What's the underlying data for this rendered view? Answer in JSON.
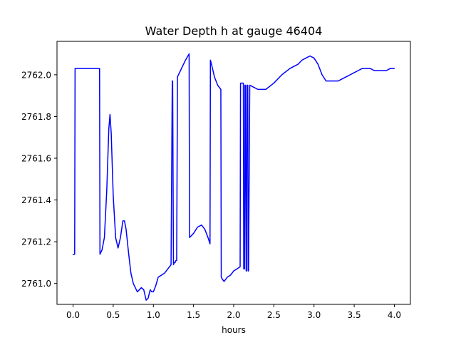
{
  "chart_data": {
    "type": "line",
    "title": "Water Depth h at gauge 46404",
    "xlabel": "hours",
    "ylabel": "",
    "xlim": [
      -0.2,
      4.2
    ],
    "ylim": [
      2760.9,
      2762.16
    ],
    "xticks": [
      0.0,
      0.5,
      1.0,
      1.5,
      2.0,
      2.5,
      3.0,
      3.5,
      4.0
    ],
    "xtick_labels": [
      "0.0",
      "0.5",
      "1.0",
      "1.5",
      "2.0",
      "2.5",
      "3.0",
      "3.5",
      "4.0"
    ],
    "yticks": [
      2761.0,
      2761.2,
      2761.4,
      2761.6,
      2761.8,
      2762.0
    ],
    "ytick_labels": [
      "2761.0",
      "2761.2",
      "2761.4",
      "2761.6",
      "2761.8",
      "2762.0"
    ],
    "grid": false,
    "series": [
      {
        "color": "#0000ff",
        "x": [
          0.0,
          0.02,
          0.025,
          0.1,
          0.2,
          0.33,
          0.335,
          0.36,
          0.39,
          0.42,
          0.445,
          0.46,
          0.475,
          0.5,
          0.53,
          0.56,
          0.59,
          0.62,
          0.64,
          0.66,
          0.69,
          0.72,
          0.75,
          0.8,
          0.85,
          0.88,
          0.91,
          0.935,
          0.96,
          0.98,
          1.0,
          1.03,
          1.06,
          1.1,
          1.14,
          1.18,
          1.22,
          1.235,
          1.24,
          1.25,
          1.26,
          1.27,
          1.28,
          1.29,
          1.3,
          1.35,
          1.4,
          1.445,
          1.45,
          1.5,
          1.55,
          1.6,
          1.64,
          1.68,
          1.705,
          1.71,
          1.73,
          1.76,
          1.8,
          1.84,
          1.845,
          1.86,
          1.88,
          1.92,
          1.96,
          2.0,
          2.04,
          2.08,
          2.085,
          2.1,
          2.12,
          2.125,
          2.135,
          2.14,
          2.145,
          2.155,
          2.16,
          2.165,
          2.175,
          2.18,
          2.185,
          2.2,
          2.25,
          2.3,
          2.35,
          2.4,
          2.5,
          2.6,
          2.7,
          2.8,
          2.85,
          2.9,
          2.95,
          3.0,
          3.05,
          3.1,
          3.15,
          3.2,
          3.25,
          3.3,
          3.35,
          3.4,
          3.45,
          3.5,
          3.55,
          3.6,
          3.65,
          3.7,
          3.75,
          3.8,
          3.85,
          3.9,
          3.95,
          4.0
        ],
        "y": [
          2761.14,
          2761.14,
          2762.03,
          2762.03,
          2762.03,
          2762.03,
          2761.14,
          2761.16,
          2761.22,
          2761.45,
          2761.74,
          2761.81,
          2761.72,
          2761.42,
          2761.22,
          2761.17,
          2761.22,
          2761.3,
          2761.3,
          2761.26,
          2761.15,
          2761.05,
          2761.0,
          2760.96,
          2760.98,
          2760.97,
          2760.92,
          2760.93,
          2760.97,
          2760.96,
          2760.96,
          2760.99,
          2761.03,
          2761.04,
          2761.05,
          2761.07,
          2761.09,
          2761.97,
          2761.97,
          2761.09,
          2761.1,
          2761.1,
          2761.11,
          2761.11,
          2761.99,
          2762.03,
          2762.07,
          2762.1,
          2761.22,
          2761.24,
          2761.27,
          2761.28,
          2761.26,
          2761.22,
          2761.19,
          2762.07,
          2762.04,
          2761.99,
          2761.95,
          2761.93,
          2761.03,
          2761.02,
          2761.01,
          2761.03,
          2761.04,
          2761.06,
          2761.07,
          2761.08,
          2761.96,
          2761.96,
          2761.96,
          2761.07,
          2761.07,
          2761.95,
          2761.95,
          2761.06,
          2761.06,
          2761.95,
          2761.95,
          2761.06,
          2761.06,
          2761.95,
          2761.94,
          2761.93,
          2761.93,
          2761.93,
          2761.96,
          2762.0,
          2762.03,
          2762.05,
          2762.07,
          2762.08,
          2762.09,
          2762.08,
          2762.05,
          2762.0,
          2761.97,
          2761.97,
          2761.97,
          2761.97,
          2761.98,
          2761.99,
          2762.0,
          2762.01,
          2762.02,
          2762.03,
          2762.03,
          2762.03,
          2762.02,
          2762.02,
          2762.02,
          2762.02,
          2762.03,
          2762.03
        ]
      }
    ]
  }
}
